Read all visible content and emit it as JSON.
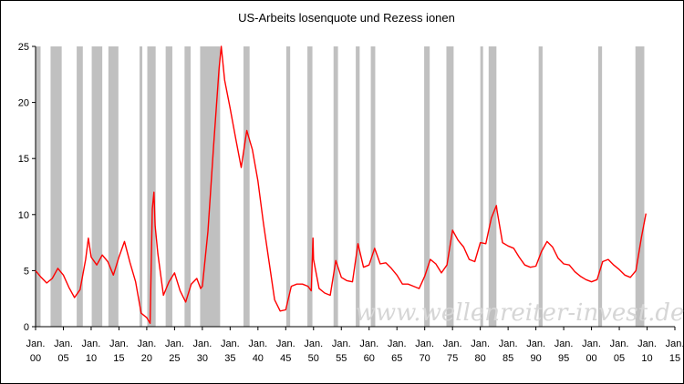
{
  "chart_data": {
    "type": "line",
    "title": "US-Arbeits losenquote und Rezess ionen",
    "xlabel": "",
    "ylabel": "",
    "xlim": [
      1900,
      2015
    ],
    "ylim": [
      0,
      25
    ],
    "y_ticks": [
      0,
      5,
      10,
      15,
      20,
      25
    ],
    "x_tick_years": [
      1900,
      1905,
      1910,
      1915,
      1920,
      1925,
      1930,
      1935,
      1940,
      1945,
      1950,
      1955,
      1960,
      1965,
      1970,
      1975,
      1980,
      1985,
      1990,
      1995,
      2000,
      2005,
      2010,
      2015
    ],
    "x_tick_top": "Jan.",
    "x_tick_bottom": [
      "00",
      "05",
      "10",
      "15",
      "20",
      "25",
      "30",
      "35",
      "40",
      "45",
      "50",
      "55",
      "60",
      "65",
      "70",
      "75",
      "80",
      "85",
      "90",
      "95",
      "00",
      "05",
      "10",
      "15"
    ],
    "grid": false,
    "series_color": "#ff0000",
    "recession_color": "#c0c0c0",
    "watermark": "www.wellenreiter-invest.de",
    "recessions": [
      [
        1899.5,
        1900.9
      ],
      [
        1902.7,
        1904.7
      ],
      [
        1907.4,
        1908.5
      ],
      [
        1910.1,
        1912.0
      ],
      [
        1913.1,
        1914.9
      ],
      [
        1918.7,
        1919.2
      ],
      [
        1920.1,
        1921.6
      ],
      [
        1923.4,
        1924.6
      ],
      [
        1926.8,
        1927.9
      ],
      [
        1929.6,
        1933.2
      ],
      [
        1937.4,
        1938.5
      ],
      [
        1945.1,
        1945.8
      ],
      [
        1948.9,
        1949.8
      ],
      [
        1953.6,
        1954.4
      ],
      [
        1957.6,
        1958.3
      ],
      [
        1960.3,
        1961.1
      ],
      [
        1969.9,
        1970.9
      ],
      [
        1973.9,
        1975.2
      ],
      [
        1980.0,
        1980.5
      ],
      [
        1981.5,
        1982.9
      ],
      [
        1990.5,
        1991.2
      ],
      [
        2001.2,
        2001.9
      ],
      [
        2007.9,
        2009.5
      ]
    ],
    "series": [
      {
        "values": [
          [
            1900,
            5.0
          ],
          [
            1901,
            4.4
          ],
          [
            1902,
            3.9
          ],
          [
            1903,
            4.3
          ],
          [
            1904,
            5.2
          ],
          [
            1905,
            4.6
          ],
          [
            1906,
            3.5
          ],
          [
            1907,
            2.6
          ],
          [
            1908,
            3.3
          ],
          [
            1909,
            6.0
          ],
          [
            1909.5,
            7.9
          ],
          [
            1910,
            6.2
          ],
          [
            1911,
            5.5
          ],
          [
            1912,
            6.4
          ],
          [
            1913,
            5.8
          ],
          [
            1914,
            4.6
          ],
          [
            1915,
            6.2
          ],
          [
            1916,
            7.6
          ],
          [
            1917,
            5.7
          ],
          [
            1918,
            4.0
          ],
          [
            1919,
            1.2
          ],
          [
            1920,
            0.8
          ],
          [
            1920.6,
            0.3
          ],
          [
            1921,
            10.5
          ],
          [
            1921.3,
            12.0
          ],
          [
            1921.5,
            9.0
          ],
          [
            1922,
            6.5
          ],
          [
            1923,
            2.8
          ],
          [
            1924,
            4.0
          ],
          [
            1925,
            4.8
          ],
          [
            1926,
            3.2
          ],
          [
            1927,
            2.2
          ],
          [
            1928,
            3.8
          ],
          [
            1929,
            4.3
          ],
          [
            1929.7,
            3.4
          ],
          [
            1930,
            3.6
          ],
          [
            1931,
            8.5
          ],
          [
            1932,
            16.0
          ],
          [
            1933,
            23.0
          ],
          [
            1933.4,
            25.0
          ],
          [
            1934,
            22.0
          ],
          [
            1935,
            19.5
          ],
          [
            1936,
            16.8
          ],
          [
            1937,
            14.2
          ],
          [
            1938,
            17.5
          ],
          [
            1939,
            15.8
          ],
          [
            1940,
            13.0
          ],
          [
            1941,
            9.2
          ],
          [
            1942,
            5.8
          ],
          [
            1943,
            2.4
          ],
          [
            1944,
            1.4
          ],
          [
            1945,
            1.5
          ],
          [
            1946,
            3.6
          ],
          [
            1947,
            3.8
          ],
          [
            1948,
            3.8
          ],
          [
            1949,
            3.6
          ],
          [
            1949.6,
            3.2
          ],
          [
            1949.9,
            7.9
          ],
          [
            1950,
            6.0
          ],
          [
            1951,
            3.4
          ],
          [
            1952,
            3.0
          ],
          [
            1953,
            2.8
          ],
          [
            1954,
            5.9
          ],
          [
            1955,
            4.4
          ],
          [
            1956,
            4.1
          ],
          [
            1957,
            4.0
          ],
          [
            1958,
            7.4
          ],
          [
            1959,
            5.3
          ],
          [
            1960,
            5.5
          ],
          [
            1961,
            7.0
          ],
          [
            1962,
            5.6
          ],
          [
            1963,
            5.7
          ],
          [
            1964,
            5.2
          ],
          [
            1965,
            4.6
          ],
          [
            1966,
            3.8
          ],
          [
            1967,
            3.8
          ],
          [
            1968,
            3.6
          ],
          [
            1969,
            3.4
          ],
          [
            1970,
            4.5
          ],
          [
            1971,
            6.0
          ],
          [
            1972,
            5.6
          ],
          [
            1973,
            4.8
          ],
          [
            1974,
            5.5
          ],
          [
            1975,
            8.6
          ],
          [
            1976,
            7.7
          ],
          [
            1977,
            7.1
          ],
          [
            1978,
            6.0
          ],
          [
            1979,
            5.8
          ],
          [
            1980,
            7.5
          ],
          [
            1981,
            7.4
          ],
          [
            1982,
            9.7
          ],
          [
            1982.9,
            10.8
          ],
          [
            1983,
            10.4
          ],
          [
            1984,
            7.5
          ],
          [
            1985,
            7.2
          ],
          [
            1986,
            7.0
          ],
          [
            1987,
            6.2
          ],
          [
            1988,
            5.5
          ],
          [
            1989,
            5.3
          ],
          [
            1990,
            5.4
          ],
          [
            1991,
            6.7
          ],
          [
            1992,
            7.6
          ],
          [
            1993,
            7.1
          ],
          [
            1994,
            6.1
          ],
          [
            1995,
            5.6
          ],
          [
            1996,
            5.5
          ],
          [
            1997,
            4.9
          ],
          [
            1998,
            4.5
          ],
          [
            1999,
            4.2
          ],
          [
            2000,
            4.0
          ],
          [
            2001,
            4.2
          ],
          [
            2002,
            5.8
          ],
          [
            2003,
            6.0
          ],
          [
            2004,
            5.5
          ],
          [
            2005,
            5.1
          ],
          [
            2006,
            4.6
          ],
          [
            2007,
            4.4
          ],
          [
            2008,
            5.0
          ],
          [
            2009,
            8.0
          ],
          [
            2009.8,
            10.1
          ]
        ]
      }
    ]
  }
}
